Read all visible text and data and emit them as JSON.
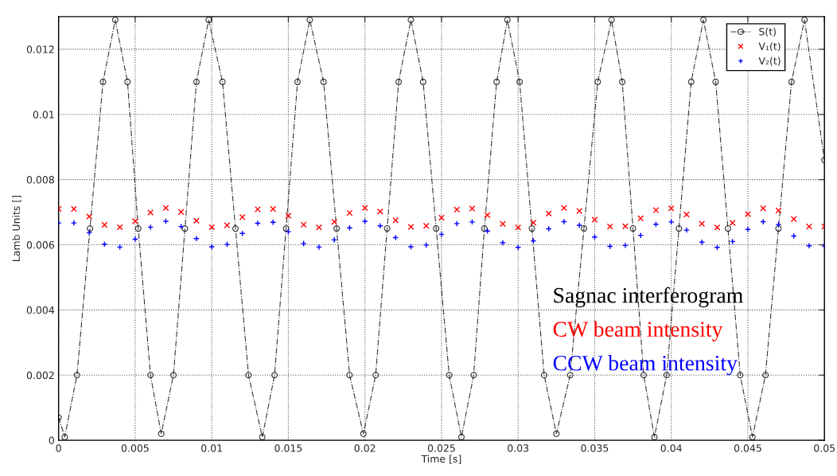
{
  "chart_data": {
    "type": "line",
    "xlabel": "Time [s]",
    "ylabel": "Lamb Units []",
    "xlim": [
      0,
      0.05
    ],
    "ylim": [
      0,
      0.013
    ],
    "xticks": [
      0,
      0.005,
      0.01,
      0.015,
      0.02,
      0.025,
      0.03,
      0.035,
      0.04,
      0.045,
      0.05
    ],
    "yticks": [
      0,
      0.002,
      0.004,
      0.006,
      0.008,
      0.01,
      0.012
    ],
    "grid": true,
    "legend": "top right",
    "series": [
      {
        "name": "S(t)",
        "color": "#000000",
        "marker": "circle",
        "line_style": "dashed",
        "x": [
          0,
          0.0004,
          0.0012,
          0.00205,
          0.0029,
          0.0037,
          0.0045,
          0.0052,
          0.006,
          0.0067,
          0.0075,
          0.00825,
          0.009,
          0.0098,
          0.0107,
          0.01155,
          0.0124,
          0.0133,
          0.0141,
          0.01485,
          0.0156,
          0.0164,
          0.0173,
          0.01815,
          0.019,
          0.0199,
          0.0207,
          0.02145,
          0.0222,
          0.023,
          0.0238,
          0.02465,
          0.0255,
          0.0263,
          0.0271,
          0.0278,
          0.0286,
          0.0293,
          0.0301,
          0.0309,
          0.0317,
          0.0325,
          0.0334,
          0.0343,
          0.0352,
          0.0361,
          0.0368,
          0.0375,
          0.0382,
          0.0389,
          0.0397,
          0.0405,
          0.0413,
          0.0421,
          0.0429,
          0.0437,
          0.0445,
          0.0453,
          0.04615,
          0.047,
          0.04785,
          0.0487,
          0.05
        ],
        "values": [
          0.0007,
          0.0001,
          0.002,
          0.0065,
          0.011,
          0.0129,
          0.011,
          0.0065,
          0.002,
          0.0002,
          0.002,
          0.0065,
          0.011,
          0.0129,
          0.011,
          0.0065,
          0.002,
          0.0001,
          0.002,
          0.0065,
          0.011,
          0.0129,
          0.011,
          0.0065,
          0.002,
          0.0002,
          0.002,
          0.0065,
          0.011,
          0.0129,
          0.011,
          0.0065,
          0.002,
          0.0001,
          0.002,
          0.0065,
          0.011,
          0.0129,
          0.011,
          0.0065,
          0.002,
          0.0002,
          0.002,
          0.0065,
          0.011,
          0.0129,
          0.011,
          0.0065,
          0.002,
          0.0001,
          0.002,
          0.0065,
          0.011,
          0.0129,
          0.011,
          0.0065,
          0.002,
          0.0001,
          0.002,
          0.0065,
          0.011,
          0.0129,
          0.0086
        ]
      },
      {
        "name": "V₁(t)",
        "type": "scatter",
        "color": "#ff0000",
        "marker": "cross",
        "x": [
          0,
          0.001,
          0.002,
          0.003,
          0.004,
          0.005,
          0.006,
          0.007,
          0.008,
          0.009,
          0.01,
          0.011,
          0.012,
          0.013,
          0.014,
          0.015,
          0.016,
          0.017,
          0.018,
          0.019,
          0.02,
          0.021,
          0.022,
          0.023,
          0.024,
          0.025,
          0.026,
          0.027,
          0.028,
          0.029,
          0.03,
          0.031,
          0.032,
          0.033,
          0.034,
          0.035,
          0.036,
          0.037,
          0.038,
          0.039,
          0.04,
          0.041,
          0.042,
          0.043,
          0.044,
          0.045,
          0.046,
          0.047,
          0.048,
          0.049,
          0.05
        ],
        "values": [
          0.0071,
          0.0071,
          0.00687,
          0.00661,
          0.00654,
          0.00672,
          0.00699,
          0.00713,
          0.00701,
          0.00674,
          0.00654,
          0.0066,
          0.00685,
          0.00709,
          0.0071,
          0.00689,
          0.00662,
          0.00653,
          0.0067,
          0.00698,
          0.00713,
          0.00702,
          0.00675,
          0.00655,
          0.00658,
          0.00683,
          0.00708,
          0.00711,
          0.00691,
          0.00664,
          0.00653,
          0.00668,
          0.00696,
          0.00713,
          0.00704,
          0.00677,
          0.00656,
          0.00657,
          0.00681,
          0.00706,
          0.00712,
          0.00693,
          0.00665,
          0.00653,
          0.00667,
          0.00694,
          0.00712,
          0.00705,
          0.00679,
          0.00656,
          0.00656
        ]
      },
      {
        "name": "V₂(t)",
        "type": "scatter",
        "color": "#0000ff",
        "marker": "plus",
        "x": [
          0,
          0.001,
          0.002,
          0.003,
          0.004,
          0.005,
          0.006,
          0.007,
          0.008,
          0.009,
          0.01,
          0.011,
          0.012,
          0.013,
          0.014,
          0.015,
          0.016,
          0.017,
          0.018,
          0.019,
          0.02,
          0.021,
          0.022,
          0.023,
          0.024,
          0.025,
          0.026,
          0.027,
          0.028,
          0.029,
          0.03,
          0.031,
          0.032,
          0.033,
          0.034,
          0.035,
          0.036,
          0.037,
          0.038,
          0.039,
          0.04,
          0.041,
          0.042,
          0.043,
          0.044,
          0.045,
          0.046,
          0.047,
          0.048,
          0.049,
          0.05
        ],
        "values": [
          0.00667,
          0.00667,
          0.00637,
          0.00602,
          0.00593,
          0.00617,
          0.00654,
          0.00672,
          0.00656,
          0.00619,
          0.00594,
          0.00601,
          0.00635,
          0.00666,
          0.00669,
          0.0064,
          0.00604,
          0.00593,
          0.00615,
          0.00652,
          0.00672,
          0.00658,
          0.00622,
          0.00594,
          0.00599,
          0.00632,
          0.00665,
          0.0067,
          0.00642,
          0.00606,
          0.00592,
          0.00612,
          0.00649,
          0.00671,
          0.0066,
          0.00624,
          0.00595,
          0.00598,
          0.00629,
          0.00663,
          0.0067,
          0.00645,
          0.00608,
          0.00592,
          0.0061,
          0.00647,
          0.00671,
          0.00662,
          0.00627,
          0.00597,
          0.00596
        ]
      }
    ],
    "annotations": [
      "Sagnac interferogram",
      "CW beam intensity",
      "CCW beam intensity"
    ]
  }
}
